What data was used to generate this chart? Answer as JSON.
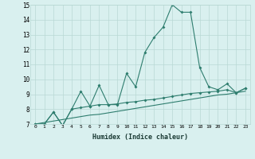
{
  "xlabel": "Humidex (Indice chaleur)",
  "x": [
    0,
    1,
    2,
    3,
    4,
    5,
    6,
    7,
    8,
    9,
    10,
    11,
    12,
    13,
    14,
    15,
    16,
    17,
    18,
    19,
    20,
    21,
    22,
    23
  ],
  "line1": [
    7,
    7,
    7.8,
    6.9,
    8,
    9.2,
    8.2,
    9.6,
    8.3,
    8.3,
    10.4,
    9.5,
    11.8,
    12.8,
    13.5,
    15,
    14.5,
    14.5,
    10.8,
    9.5,
    9.3,
    9.7,
    9.1,
    9.4
  ],
  "line2": [
    7,
    7,
    7.8,
    6.9,
    8,
    8.1,
    8.2,
    8.3,
    8.3,
    8.35,
    8.45,
    8.5,
    8.6,
    8.65,
    8.75,
    8.85,
    8.95,
    9.05,
    9.1,
    9.15,
    9.2,
    9.3,
    9.1,
    9.4
  ],
  "line3": [
    7,
    7.1,
    7.2,
    7.3,
    7.4,
    7.5,
    7.6,
    7.65,
    7.75,
    7.85,
    7.95,
    8.05,
    8.15,
    8.25,
    8.35,
    8.45,
    8.55,
    8.65,
    8.75,
    8.85,
    8.95,
    9.0,
    9.1,
    9.2
  ],
  "line_color": "#2e7d6e",
  "bg_color": "#d9f0ef",
  "grid_color": "#b8d8d4",
  "ylim": [
    7,
    15
  ],
  "xlim": [
    -0.5,
    23.5
  ]
}
